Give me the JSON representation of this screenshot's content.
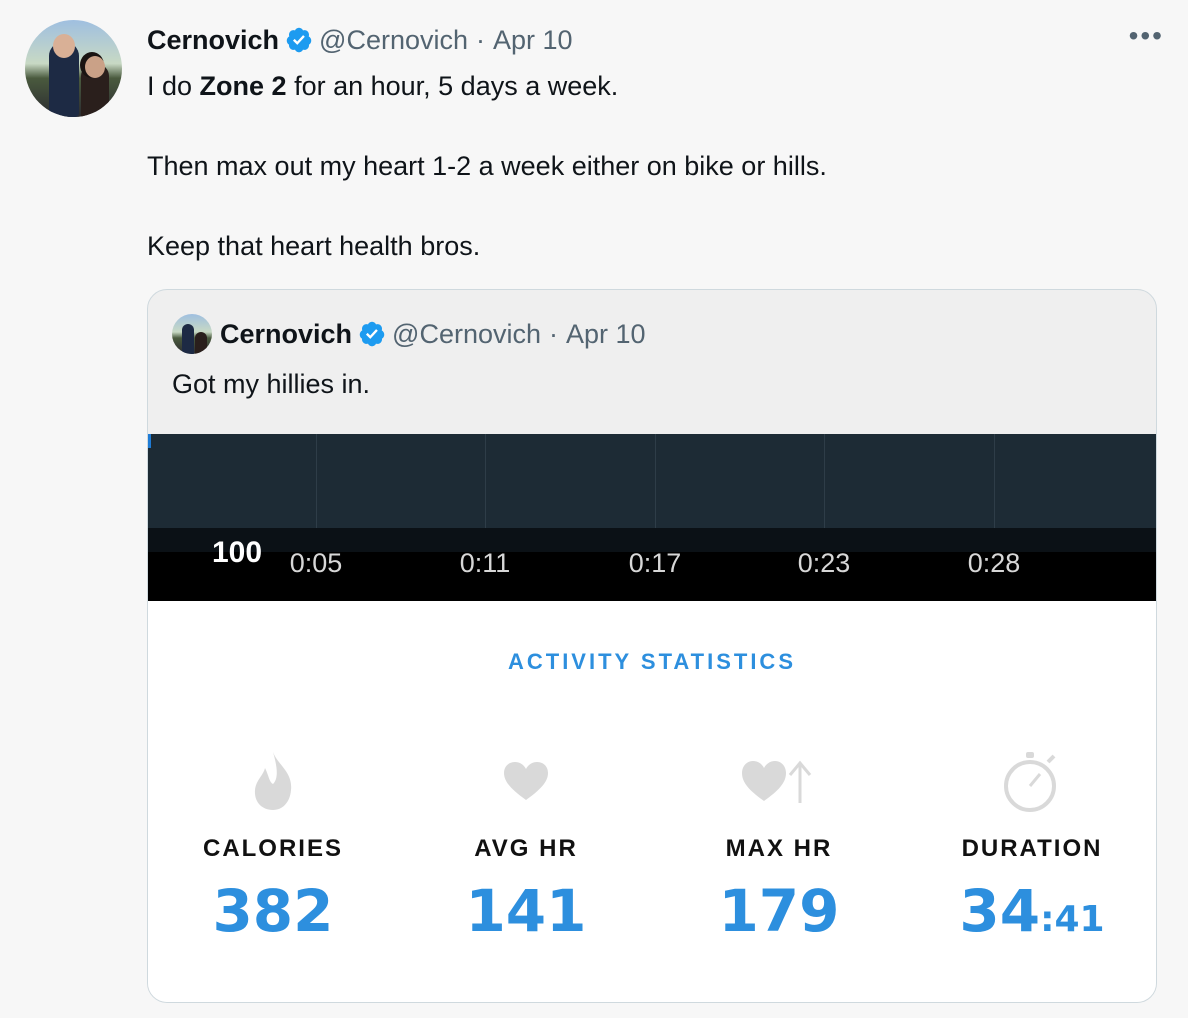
{
  "tweet": {
    "author_name": "Cernovich",
    "handle": "@Cernovich",
    "separator": "·",
    "date": "Apr 10",
    "more": "•••",
    "line1_pre": "I do ",
    "line1_bold": "Zone 2",
    "line1_post": " for an hour, 5 days a week.",
    "line2": "Then max out my heart 1-2 a week either on bike or hills.",
    "line3": "Keep that heart health bros."
  },
  "quoted": {
    "author_name": "Cernovich",
    "handle": "@Cernovich",
    "separator": "·",
    "date": "Apr 10",
    "text": "Got my hillies in.",
    "chart": {
      "y_label": "100",
      "ticks": [
        "0:05",
        "0:11",
        "0:17",
        "0:23",
        "0:28"
      ]
    },
    "stats": {
      "title": "ACTIVITY STATISTICS",
      "items": [
        {
          "label": "CALORIES",
          "value": "382",
          "icon": "flame-icon"
        },
        {
          "label": "AVG HR",
          "value": "141",
          "icon": "heart-icon"
        },
        {
          "label": "MAX HR",
          "value": "179",
          "icon": "heart-arrow-up-icon"
        },
        {
          "label": "DURATION",
          "value_main": "34",
          "value_sub": ":41",
          "icon": "stopwatch-icon"
        }
      ]
    }
  },
  "colors": {
    "accent": "#2d8fde",
    "verified": "#1d9bf0",
    "chart_bg": "#1d2b35"
  }
}
